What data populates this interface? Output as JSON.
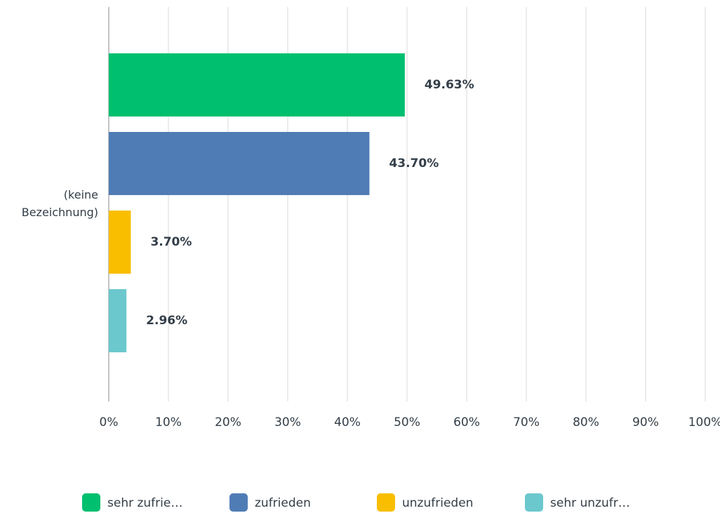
{
  "chart_data": {
    "type": "bar",
    "orientation": "horizontal",
    "categories": [
      "(keine Bezeichnung)"
    ],
    "series": [
      {
        "name": "sehr zufrie…",
        "color": "#00bf6f",
        "values": [
          49.63
        ],
        "value_labels": [
          "49.63%"
        ]
      },
      {
        "name": "zufrieden",
        "color": "#507cb6",
        "values": [
          43.7
        ],
        "value_labels": [
          "43.70%"
        ]
      },
      {
        "name": "unzufrieden",
        "color": "#f9be00",
        "values": [
          3.7
        ],
        "value_labels": [
          "3.70%"
        ]
      },
      {
        "name": "sehr unzufr…",
        "color": "#6bc8cd",
        "values": [
          2.96
        ],
        "value_labels": [
          "2.96%"
        ]
      }
    ],
    "xlim": [
      0,
      100
    ],
    "xticks": [
      {
        "value": 0,
        "label": "0%"
      },
      {
        "value": 10,
        "label": "10%"
      },
      {
        "value": 20,
        "label": "20%"
      },
      {
        "value": 30,
        "label": "30%"
      },
      {
        "value": 40,
        "label": "40%"
      },
      {
        "value": 50,
        "label": "50%"
      },
      {
        "value": 60,
        "label": "60%"
      },
      {
        "value": 70,
        "label": "70%"
      },
      {
        "value": 80,
        "label": "80%"
      },
      {
        "value": 90,
        "label": "90%"
      },
      {
        "value": 100,
        "label": "100%"
      }
    ],
    "grid": true,
    "legend": "bottom"
  }
}
